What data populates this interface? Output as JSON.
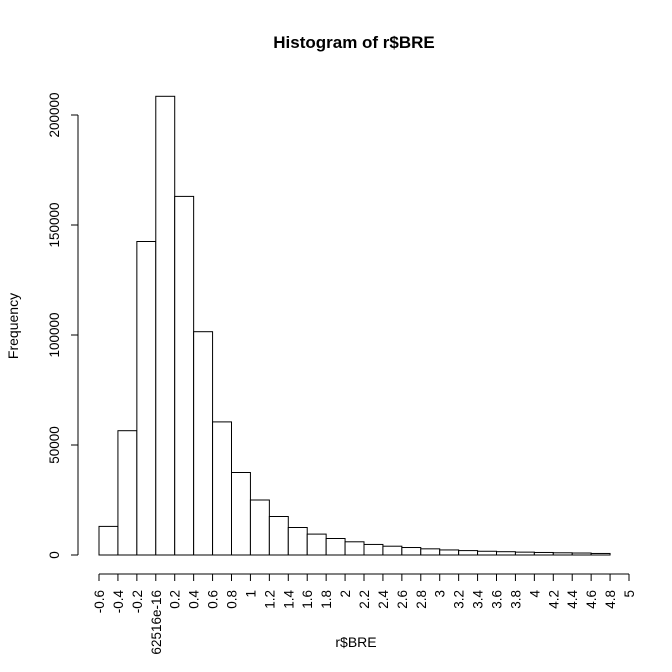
{
  "chart_data": {
    "type": "bar",
    "title": "Histogram of r$BRE",
    "xlabel": "r$BRE",
    "ylabel": "Frequency",
    "bin_edges": [
      -0.6,
      -0.4,
      -0.2,
      0.0,
      0.2,
      0.4,
      0.6,
      0.8,
      1.0,
      1.2,
      1.4,
      1.6,
      1.8,
      2.0,
      2.2,
      2.4,
      2.6,
      2.8,
      3.0,
      3.2,
      3.4,
      3.6,
      3.8,
      4.0,
      4.2,
      4.4,
      4.6,
      4.8
    ],
    "values": [
      13000,
      56500,
      142500,
      208500,
      163000,
      101500,
      60500,
      37500,
      25000,
      17500,
      12500,
      9500,
      7500,
      6000,
      4800,
      4000,
      3400,
      2800,
      2300,
      2000,
      1700,
      1500,
      1300,
      1150,
      1000,
      900,
      700
    ],
    "x_ticks": [
      -0.6,
      -0.4,
      -0.2,
      0.0,
      0.2,
      0.4,
      0.6,
      0.8,
      1.0,
      1.2,
      1.4,
      1.6,
      1.8,
      2.0,
      2.2,
      2.4,
      2.6,
      2.8,
      3.0,
      3.2,
      3.4,
      3.6,
      3.8,
      4.0,
      4.2,
      4.4,
      4.6,
      4.8,
      5.0
    ],
    "x_tick_labels": [
      "-0.6",
      "-0.4",
      "-0.2",
      "62516e-16",
      "0.2",
      "0.4",
      "0.6",
      "0.8",
      "1",
      "1.2",
      "1.4",
      "1.6",
      "1.8",
      "2",
      "2.2",
      "2.4",
      "2.6",
      "2.8",
      "3",
      "3.2",
      "3.4",
      "3.6",
      "3.8",
      "4",
      "4.2",
      "4.4",
      "4.6",
      "4.8",
      "5"
    ],
    "y_ticks": [
      0,
      50000,
      100000,
      150000,
      200000
    ],
    "y_tick_labels": [
      "0",
      "50000",
      "100000",
      "150000",
      "200000"
    ],
    "xlim": [
      -0.6,
      5.0
    ],
    "grid": false,
    "colors": {
      "bar_fill": "#ffffff",
      "bar_stroke": "#000000",
      "axis": "#000000"
    }
  }
}
